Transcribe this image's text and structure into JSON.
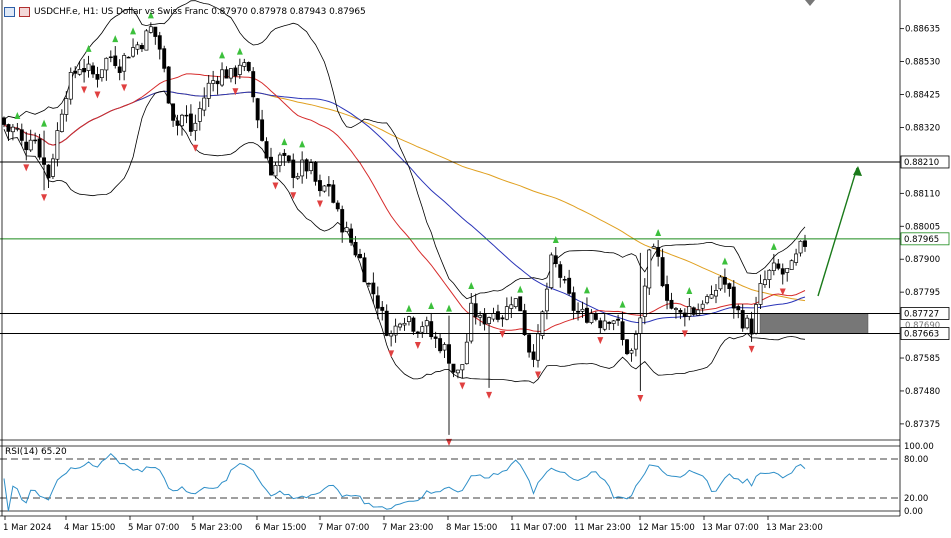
{
  "window": {
    "title": "USDCHF.e, H1:  US Dollar vs Swiss Franc  0.87970 0.87978 0.87943 0.87965",
    "rsi_label": "RSI(14) 65.20"
  },
  "colors": {
    "bull_candle": "#ffffff",
    "bear_candle": "#000000",
    "bollinger": "#000000",
    "ma_fast": "#d62b2b",
    "ma_mid": "#2a34b8",
    "ma_slow": "#e0a020",
    "rsi_line": "#2f8fc8",
    "up_fractal": "#3cc03c",
    "down_fractal": "#e04040",
    "arrow": "#1a7a1a",
    "zone": "#777777",
    "current_price_line": "#1a8a1a"
  },
  "chart_data": [
    {
      "type": "candlestick",
      "symbol": "USDCHF.e",
      "timeframe": "H1",
      "ylim": [
        0.8733,
        0.8872
      ],
      "price_ticks": [
        "0.88635",
        "0.88530",
        "0.88425",
        "0.88320",
        "0.88210",
        "0.88110",
        "0.88005",
        "0.87900",
        "0.87795",
        "0.87690",
        "0.87585",
        "0.87480",
        "0.87375"
      ],
      "time_ticks": [
        "1 Mar 2024",
        "4 Mar 15:00",
        "5 Mar 07:00",
        "5 Mar 23:00",
        "6 Mar 15:00",
        "7 Mar 07:00",
        "7 Mar 23:00",
        "8 Mar 15:00",
        "11 Mar 07:00",
        "11 Mar 23:00",
        "12 Mar 15:00",
        "13 Mar 07:00",
        "13 Mar 23:00"
      ],
      "horizontal_levels": [
        {
          "label": "0.88210",
          "value": 0.8821
        },
        {
          "label": "0.87965",
          "value": 0.87965,
          "current": true
        },
        {
          "label": "0.87727",
          "value": 0.87727
        },
        {
          "label": "0.87663",
          "value": 0.87663
        }
      ],
      "overlapped_tick": "0.87690",
      "zone": [
        0.87663,
        0.87727
      ],
      "current_price": 0.87965,
      "projection_target": 0.8821,
      "close_path": [
        [
          0,
          0.8835
        ],
        [
          8,
          0.8831
        ],
        [
          16,
          0.8832
        ],
        [
          24,
          0.8825
        ],
        [
          32,
          0.8831
        ],
        [
          40,
          0.8824
        ],
        [
          48,
          0.8816
        ],
        [
          56,
          0.8828
        ],
        [
          64,
          0.8842
        ],
        [
          72,
          0.8848
        ],
        [
          80,
          0.8852
        ],
        [
          88,
          0.885
        ],
        [
          96,
          0.8848
        ],
        [
          104,
          0.8853
        ],
        [
          112,
          0.8855
        ],
        [
          120,
          0.8852
        ],
        [
          128,
          0.8856
        ],
        [
          136,
          0.8858
        ],
        [
          144,
          0.886
        ],
        [
          152,
          0.8864
        ],
        [
          160,
          0.8857
        ],
        [
          168,
          0.8843
        ],
        [
          176,
          0.8832
        ],
        [
          184,
          0.8837
        ],
        [
          192,
          0.883
        ],
        [
          200,
          0.8838
        ],
        [
          208,
          0.8845
        ],
        [
          216,
          0.8848
        ],
        [
          224,
          0.885
        ],
        [
          232,
          0.8848
        ],
        [
          240,
          0.8853
        ],
        [
          248,
          0.8849
        ],
        [
          256,
          0.8838
        ],
        [
          264,
          0.8825
        ],
        [
          272,
          0.8818
        ],
        [
          280,
          0.8822
        ],
        [
          288,
          0.882
        ],
        [
          296,
          0.8817
        ],
        [
          304,
          0.882
        ],
        [
          312,
          0.8818
        ],
        [
          320,
          0.881
        ],
        [
          328,
          0.8815
        ],
        [
          336,
          0.8805
        ],
        [
          344,
          0.88
        ],
        [
          352,
          0.8795
        ],
        [
          360,
          0.879
        ],
        [
          368,
          0.8782
        ],
        [
          376,
          0.8778
        ],
        [
          384,
          0.877
        ],
        [
          392,
          0.8765
        ],
        [
          400,
          0.8772
        ],
        [
          408,
          0.8772
        ],
        [
          416,
          0.8768
        ],
        [
          424,
          0.877
        ],
        [
          432,
          0.8765
        ],
        [
          440,
          0.8763
        ],
        [
          448,
          0.876
        ],
        [
          456,
          0.8752
        ],
        [
          464,
          0.8758
        ],
        [
          472,
          0.8775
        ],
        [
          480,
          0.877
        ],
        [
          488,
          0.8772
        ],
        [
          496,
          0.8774
        ],
        [
          504,
          0.8772
        ],
        [
          512,
          0.8778
        ],
        [
          520,
          0.8775
        ],
        [
          528,
          0.8762
        ],
        [
          536,
          0.876
        ],
        [
          544,
          0.8775
        ],
        [
          552,
          0.879
        ],
        [
          560,
          0.8785
        ],
        [
          568,
          0.8778
        ],
        [
          576,
          0.8773
        ],
        [
          584,
          0.8772
        ],
        [
          592,
          0.8773
        ],
        [
          600,
          0.877
        ],
        [
          608,
          0.8772
        ],
        [
          616,
          0.8771
        ],
        [
          624,
          0.8762
        ],
        [
          632,
          0.876
        ],
        [
          640,
          0.877
        ],
        [
          648,
          0.879
        ],
        [
          656,
          0.8792
        ],
        [
          664,
          0.8782
        ],
        [
          672,
          0.8774
        ],
        [
          680,
          0.8772
        ],
        [
          688,
          0.8775
        ],
        [
          696,
          0.8773
        ],
        [
          704,
          0.8778
        ],
        [
          712,
          0.8776
        ],
        [
          720,
          0.8785
        ],
        [
          728,
          0.878
        ],
        [
          736,
          0.8774
        ],
        [
          744,
          0.877
        ],
        [
          752,
          0.8768
        ],
        [
          760,
          0.878
        ],
        [
          768,
          0.8785
        ],
        [
          776,
          0.8787
        ],
        [
          784,
          0.8785
        ],
        [
          792,
          0.8787
        ],
        [
          800,
          0.8793
        ],
        [
          808,
          0.87965
        ]
      ],
      "rsi": {
        "label": "RSI(14) 65.20",
        "levels": [
          100,
          80,
          20,
          0
        ],
        "value": 65.2
      }
    }
  ]
}
